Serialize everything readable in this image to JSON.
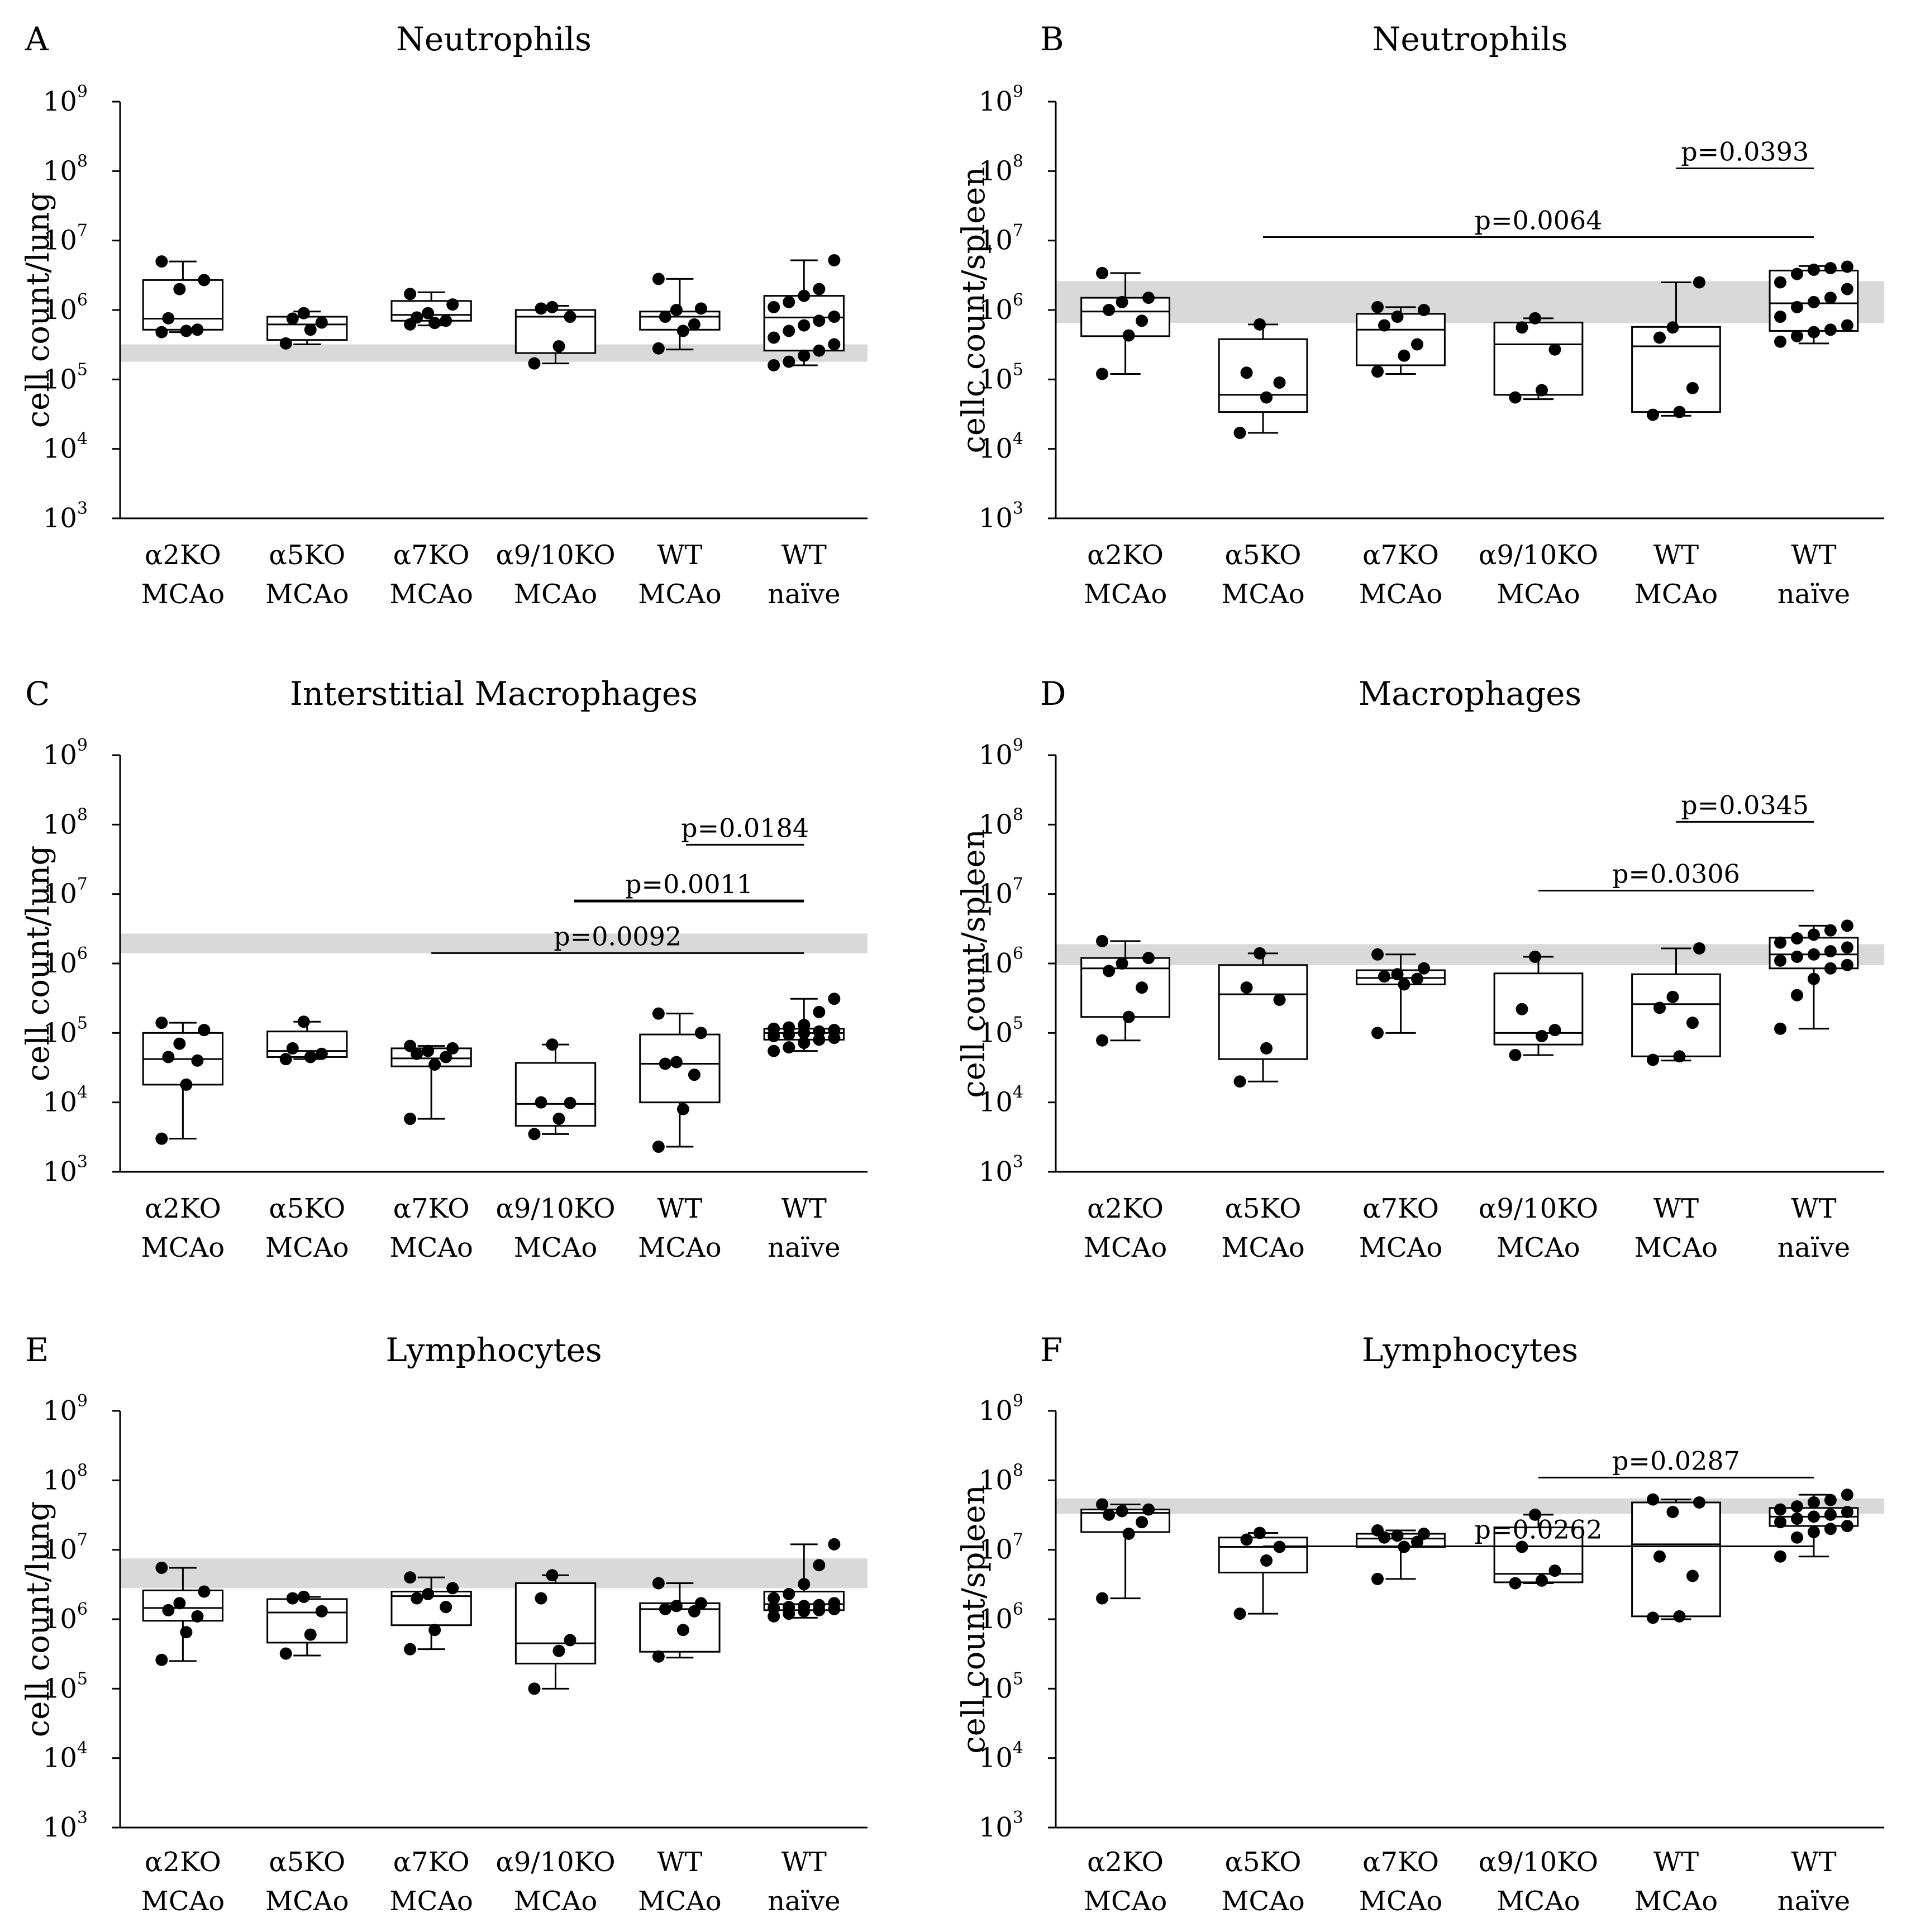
{
  "figure": {
    "background": "#ffffff",
    "band_color": "#d9d9d9",
    "ink_color": "#000000",
    "categories": [
      [
        "α2KO",
        "MCAo"
      ],
      [
        "α5KO",
        "MCAo"
      ],
      [
        "α7KO",
        "MCAo"
      ],
      [
        "α9/10KO",
        "MCAo"
      ],
      [
        "WT",
        "MCAo"
      ],
      [
        "WT",
        "naïve"
      ]
    ]
  },
  "chart_data": [
    {
      "panel": "A",
      "type": "box",
      "title": "Neutrophils",
      "ylabel": "cell count/lung",
      "yscale": "log",
      "ylim": [
        1000,
        1000000000
      ],
      "yticks": [
        {
          "base": "10",
          "exp": "3"
        },
        {
          "base": "10",
          "exp": "4"
        },
        {
          "base": "10",
          "exp": "5"
        },
        {
          "base": "10",
          "exp": "6"
        },
        {
          "base": "10",
          "exp": "7"
        },
        {
          "base": "10",
          "exp": "8"
        },
        {
          "base": "10",
          "exp": "9"
        }
      ],
      "reference_band": [
        180000,
        320000
      ],
      "series": [
        {
          "name": "α2KO MCAo",
          "min": 480000,
          "q1": 520000,
          "median": 750000,
          "q3": 2700000,
          "max": 5000000,
          "points": [
            480000,
            500000,
            520000,
            760000,
            2000000,
            2700000,
            5000000
          ]
        },
        {
          "name": "α5KO MCAo",
          "min": 320000,
          "q1": 370000,
          "median": 620000,
          "q3": 800000,
          "max": 950000,
          "points": [
            330000,
            520000,
            660000,
            750000,
            900000
          ]
        },
        {
          "name": "α7KO MCAo",
          "min": 600000,
          "q1": 700000,
          "median": 850000,
          "q3": 1350000,
          "max": 1800000,
          "points": [
            620000,
            650000,
            700000,
            780000,
            900000,
            1200000,
            1700000
          ]
        },
        {
          "name": "α9/10KO MCAo",
          "min": 170000,
          "q1": 240000,
          "median": 800000,
          "q3": 1000000,
          "max": 1150000,
          "points": [
            170000,
            300000,
            800000,
            1050000,
            1100000
          ]
        },
        {
          "name": "WT MCAo",
          "min": 270000,
          "q1": 520000,
          "median": 800000,
          "q3": 950000,
          "max": 2800000,
          "points": [
            280000,
            500000,
            620000,
            800000,
            1000000,
            1050000,
            2800000
          ]
        },
        {
          "name": "WT naïve",
          "min": 160000,
          "q1": 260000,
          "median": 780000,
          "q3": 1600000,
          "max": 5200000,
          "points": [
            160000,
            180000,
            220000,
            260000,
            320000,
            400000,
            500000,
            600000,
            700000,
            800000,
            1100000,
            1300000,
            1600000,
            2000000,
            5200000
          ]
        }
      ],
      "comparisons": []
    },
    {
      "panel": "B",
      "type": "box",
      "title": "Neutrophils",
      "ylabel": "cellc count/spleen",
      "yscale": "log",
      "ylim": [
        1000,
        1000000000
      ],
      "yticks": [
        {
          "base": "10",
          "exp": "3"
        },
        {
          "base": "10",
          "exp": "4"
        },
        {
          "base": "10",
          "exp": "5"
        },
        {
          "base": "10",
          "exp": "6"
        },
        {
          "base": "10",
          "exp": "7"
        },
        {
          "base": "10",
          "exp": "8"
        },
        {
          "base": "10",
          "exp": "9"
        }
      ],
      "reference_band": [
        650000,
        2600000
      ],
      "series": [
        {
          "name": "α2KO MCAo",
          "min": 120000,
          "q1": 420000,
          "median": 950000,
          "q3": 1500000,
          "max": 3400000,
          "points": [
            120000,
            430000,
            700000,
            1000000,
            1300000,
            1500000,
            3400000
          ]
        },
        {
          "name": "α5KO MCAo",
          "min": 17000,
          "q1": 34000,
          "median": 60000,
          "q3": 380000,
          "max": 620000,
          "points": [
            17000,
            55000,
            90000,
            125000,
            620000
          ]
        },
        {
          "name": "α7KO MCAo",
          "min": 120000,
          "q1": 160000,
          "median": 520000,
          "q3": 880000,
          "max": 1100000,
          "points": [
            130000,
            220000,
            320000,
            600000,
            800000,
            1000000,
            1100000
          ]
        },
        {
          "name": "α9/10KO MCAo",
          "min": 52000,
          "q1": 60000,
          "median": 320000,
          "q3": 660000,
          "max": 760000,
          "points": [
            55000,
            70000,
            270000,
            560000,
            760000
          ]
        },
        {
          "name": "WT MCAo",
          "min": 30000,
          "q1": 34000,
          "median": 300000,
          "q3": 570000,
          "max": 2500000,
          "points": [
            31000,
            34000,
            75000,
            400000,
            560000,
            2500000
          ]
        },
        {
          "name": "WT naïve",
          "min": 330000,
          "q1": 500000,
          "median": 1250000,
          "q3": 3700000,
          "max": 4300000,
          "points": [
            350000,
            420000,
            480000,
            520000,
            600000,
            800000,
            1100000,
            1300000,
            1500000,
            2000000,
            2500000,
            3300000,
            3800000,
            4000000,
            4200000
          ]
        }
      ],
      "comparisons": [
        {
          "label": "p=0.0393",
          "from": 4,
          "to": 5,
          "level": 1,
          "bold": false
        },
        {
          "label": "p=0.0064",
          "from": 1,
          "to": 5,
          "level": 0,
          "bold": false
        }
      ]
    },
    {
      "panel": "C",
      "type": "box",
      "title": "Interstitial Macrophages",
      "ylabel": "cell count/lung",
      "yscale": "log",
      "ylim": [
        1000,
        1000000000
      ],
      "yticks": [
        {
          "base": "10",
          "exp": "3"
        },
        {
          "base": "10",
          "exp": "4"
        },
        {
          "base": "10",
          "exp": "5"
        },
        {
          "base": "10",
          "exp": "6"
        },
        {
          "base": "10",
          "exp": "7"
        },
        {
          "base": "10",
          "exp": "8"
        },
        {
          "base": "10",
          "exp": "9"
        }
      ],
      "reference_band": [
        1400000,
        2700000
      ],
      "series": [
        {
          "name": "α2KO MCAo",
          "min": 3000,
          "q1": 18000,
          "median": 42000,
          "q3": 100000,
          "max": 140000,
          "points": [
            3000,
            18000,
            40000,
            45000,
            70000,
            110000,
            140000
          ]
        },
        {
          "name": "α5KO MCAo",
          "min": 42000,
          "q1": 45000,
          "median": 55000,
          "q3": 105000,
          "max": 145000,
          "points": [
            42000,
            45000,
            50000,
            60000,
            145000
          ]
        },
        {
          "name": "α7KO MCAo",
          "min": 5800,
          "q1": 33000,
          "median": 43000,
          "q3": 60000,
          "max": 65000,
          "points": [
            5800,
            35000,
            45000,
            50000,
            55000,
            60000,
            65000
          ]
        },
        {
          "name": "α9/10KO MCAo",
          "min": 3500,
          "q1": 4600,
          "median": 9500,
          "q3": 37000,
          "max": 68000,
          "points": [
            3500,
            5800,
            9800,
            10000,
            68000
          ]
        },
        {
          "name": "WT MCAo",
          "min": 2300,
          "q1": 10000,
          "median": 36000,
          "q3": 95000,
          "max": 190000,
          "points": [
            2300,
            8000,
            25000,
            36000,
            38000,
            100000,
            190000
          ]
        },
        {
          "name": "WT naïve",
          "min": 55000,
          "q1": 80000,
          "median": 100000,
          "q3": 115000,
          "max": 310000,
          "points": [
            55000,
            62000,
            72000,
            80000,
            85000,
            90000,
            95000,
            100000,
            105000,
            110000,
            115000,
            120000,
            130000,
            200000,
            310000
          ]
        }
      ],
      "comparisons": [
        {
          "label": "p=0.0184",
          "from": 4.05,
          "to": 5,
          "level": 2,
          "bold": false
        },
        {
          "label": "p=0.0011",
          "from": 3.15,
          "to": 5,
          "level": 1,
          "bold": true
        },
        {
          "label": "p=0.0092",
          "from": 2,
          "to": 5,
          "level": 0,
          "bold": false
        }
      ]
    },
    {
      "panel": "D",
      "type": "box",
      "title": "Macrophages",
      "ylabel": "cell count/spleen",
      "yscale": "log",
      "ylim": [
        1000,
        1000000000
      ],
      "yticks": [
        {
          "base": "10",
          "exp": "3"
        },
        {
          "base": "10",
          "exp": "4"
        },
        {
          "base": "10",
          "exp": "5"
        },
        {
          "base": "10",
          "exp": "6"
        },
        {
          "base": "10",
          "exp": "7"
        },
        {
          "base": "10",
          "exp": "8"
        },
        {
          "base": "10",
          "exp": "9"
        }
      ],
      "reference_band": [
        950000,
        1900000
      ],
      "series": [
        {
          "name": "α2KO MCAo",
          "min": 78000,
          "q1": 170000,
          "median": 850000,
          "q3": 1200000,
          "max": 2100000,
          "points": [
            78000,
            170000,
            450000,
            780000,
            1000000,
            1200000,
            2100000
          ]
        },
        {
          "name": "α5KO MCAo",
          "min": 20000,
          "q1": 42000,
          "median": 360000,
          "q3": 950000,
          "max": 1400000,
          "points": [
            20000,
            60000,
            300000,
            450000,
            1400000
          ]
        },
        {
          "name": "α7KO MCAo",
          "min": 100000,
          "q1": 500000,
          "median": 620000,
          "q3": 800000,
          "max": 1350000,
          "points": [
            100000,
            500000,
            600000,
            650000,
            700000,
            850000,
            1350000
          ]
        },
        {
          "name": "α9/10KO MCAo",
          "min": 48000,
          "q1": 68000,
          "median": 100000,
          "q3": 720000,
          "max": 1250000,
          "points": [
            48000,
            90000,
            110000,
            220000,
            1250000
          ]
        },
        {
          "name": "WT MCAo",
          "min": 40000,
          "q1": 46000,
          "median": 260000,
          "q3": 700000,
          "max": 1650000,
          "points": [
            41000,
            46000,
            140000,
            230000,
            330000,
            1650000
          ]
        },
        {
          "name": "WT naïve",
          "min": 115000,
          "q1": 850000,
          "median": 1350000,
          "q3": 2350000,
          "max": 3500000,
          "points": [
            115000,
            350000,
            600000,
            850000,
            950000,
            1100000,
            1250000,
            1350000,
            1500000,
            1700000,
            2000000,
            2300000,
            2600000,
            3000000,
            3500000
          ]
        }
      ],
      "comparisons": [
        {
          "label": "p=0.0345",
          "from": 4,
          "to": 5,
          "level": 1,
          "bold": false
        },
        {
          "label": "p=0.0306",
          "from": 3,
          "to": 5,
          "level": 0,
          "bold": false
        }
      ]
    },
    {
      "panel": "E",
      "type": "box",
      "title": "Lymphocytes",
      "ylabel": "cell count/lung",
      "yscale": "log",
      "ylim": [
        1000,
        1000000000
      ],
      "yticks": [
        {
          "base": "10",
          "exp": "3"
        },
        {
          "base": "10",
          "exp": "4"
        },
        {
          "base": "10",
          "exp": "5"
        },
        {
          "base": "10",
          "exp": "6"
        },
        {
          "base": "10",
          "exp": "7"
        },
        {
          "base": "10",
          "exp": "8"
        },
        {
          "base": "10",
          "exp": "9"
        }
      ],
      "reference_band": [
        2800000,
        7500000
      ],
      "series": [
        {
          "name": "α2KO MCAo",
          "min": 250000,
          "q1": 950000,
          "median": 1450000,
          "q3": 2600000,
          "max": 5500000,
          "points": [
            260000,
            650000,
            1100000,
            1350000,
            1700000,
            2500000,
            5500000
          ]
        },
        {
          "name": "α5KO MCAo",
          "min": 300000,
          "q1": 460000,
          "median": 1250000,
          "q3": 1950000,
          "max": 2100000,
          "points": [
            320000,
            600000,
            1300000,
            2000000,
            2100000
          ]
        },
        {
          "name": "α7KO MCAo",
          "min": 370000,
          "q1": 820000,
          "median": 2150000,
          "q3": 2500000,
          "max": 4000000,
          "points": [
            370000,
            700000,
            1500000,
            2000000,
            2300000,
            2800000,
            4000000
          ]
        },
        {
          "name": "α9/10KO MCAo",
          "min": 100000,
          "q1": 230000,
          "median": 450000,
          "q3": 3300000,
          "max": 4300000,
          "points": [
            100000,
            350000,
            500000,
            2000000,
            4300000
          ]
        },
        {
          "name": "WT MCAo",
          "min": 280000,
          "q1": 340000,
          "median": 1400000,
          "q3": 1700000,
          "max": 3300000,
          "points": [
            290000,
            700000,
            1300000,
            1400000,
            1550000,
            1700000,
            3300000
          ]
        },
        {
          "name": "WT naïve",
          "min": 1050000,
          "q1": 1350000,
          "median": 1650000,
          "q3": 2500000,
          "max": 12000000,
          "points": [
            1100000,
            1200000,
            1300000,
            1350000,
            1400000,
            1450000,
            1500000,
            1550000,
            1600000,
            1700000,
            2000000,
            2300000,
            3200000,
            6000000,
            12000000
          ]
        }
      ],
      "comparisons": []
    },
    {
      "panel": "F",
      "type": "box",
      "title": "Lymphocytes",
      "ylabel": "cell count/spleen",
      "yscale": "log",
      "ylim": [
        1000,
        1000000000
      ],
      "yticks": [
        {
          "base": "10",
          "exp": "3"
        },
        {
          "base": "10",
          "exp": "4"
        },
        {
          "base": "10",
          "exp": "5"
        },
        {
          "base": "10",
          "exp": "6"
        },
        {
          "base": "10",
          "exp": "7"
        },
        {
          "base": "10",
          "exp": "8"
        },
        {
          "base": "10",
          "exp": "9"
        }
      ],
      "reference_band": [
        33000000,
        55000000
      ],
      "series": [
        {
          "name": "α2KO MCAo",
          "min": 2000000,
          "q1": 18000000,
          "median": 34000000,
          "q3": 38000000,
          "max": 45000000,
          "points": [
            2000000,
            17000000,
            25000000,
            32000000,
            36000000,
            38000000,
            45000000
          ]
        },
        {
          "name": "α5KO MCAo",
          "min": 1200000,
          "q1": 4700000,
          "median": 11000000,
          "q3": 15000000,
          "max": 17500000,
          "points": [
            1200000,
            7000000,
            11000000,
            14000000,
            17500000
          ]
        },
        {
          "name": "α7KO MCAo",
          "min": 3800000,
          "q1": 11000000,
          "median": 14500000,
          "q3": 17000000,
          "max": 19000000,
          "points": [
            3800000,
            11000000,
            13000000,
            15000000,
            16000000,
            17000000,
            19000000
          ]
        },
        {
          "name": "α9/10KO MCAo",
          "min": 3300000,
          "q1": 3400000,
          "median": 4500000,
          "q3": 21000000,
          "max": 32000000,
          "points": [
            3300000,
            3600000,
            5000000,
            11000000,
            32000000
          ]
        },
        {
          "name": "WT MCAo",
          "min": 1000000,
          "q1": 1100000,
          "median": 12000000,
          "q3": 48000000,
          "max": 53000000,
          "points": [
            1050000,
            1100000,
            4200000,
            8000000,
            35000000,
            48000000,
            53000000
          ]
        },
        {
          "name": "WT naïve",
          "min": 8000000,
          "q1": 22000000,
          "median": 30000000,
          "q3": 40000000,
          "max": 62000000,
          "points": [
            8000000,
            15000000,
            18000000,
            20000000,
            22000000,
            25000000,
            28000000,
            30000000,
            32000000,
            35000000,
            38000000,
            42000000,
            48000000,
            52000000,
            62000000
          ]
        }
      ],
      "comparisons": [
        {
          "label": "p=0.0287",
          "from": 3,
          "to": 5,
          "level": 1,
          "bold": false
        },
        {
          "label": "p=0.0262",
          "from": 1,
          "to": 5,
          "level": 0,
          "bold": false
        }
      ]
    }
  ]
}
